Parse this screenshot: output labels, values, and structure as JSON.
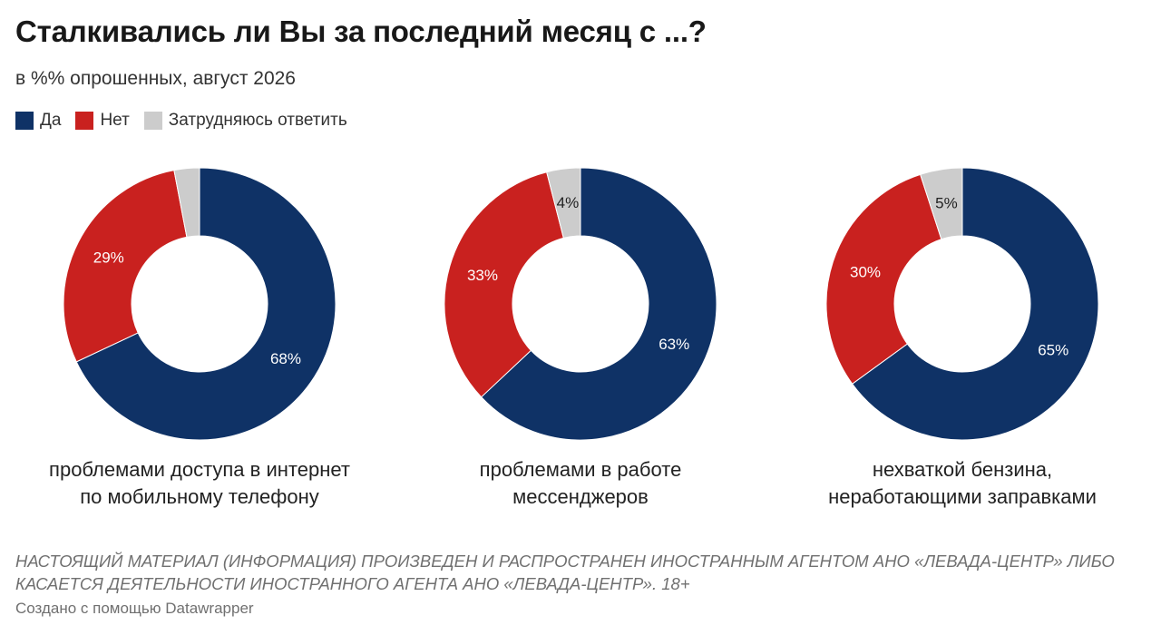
{
  "title": "Сталкивались ли Вы за последний месяц с ...?",
  "subtitle": "в %% опрошенных, август 2026",
  "legend": [
    {
      "label": "Да",
      "color": "#0f3266"
    },
    {
      "label": "Нет",
      "color": "#c9211f"
    },
    {
      "label": "Затрудняюсь ответить",
      "color": "#cccccc"
    }
  ],
  "chart_data": {
    "type": "pie",
    "subtype": "donut",
    "title": "Сталкивались ли Вы за последний месяц с ...?",
    "subtitle": "в %% опрошенных, август 2026",
    "unit": "%",
    "series_names": [
      "Да",
      "Нет",
      "Затрудняюсь ответить"
    ],
    "charts": [
      {
        "caption": [
          "проблемами доступа в интернет",
          "по мобильному телефону"
        ],
        "values": [
          68,
          29,
          3
        ],
        "labels": [
          "68%",
          "29%",
          ""
        ]
      },
      {
        "caption": [
          "проблемами в работе",
          "мессенджеров"
        ],
        "values": [
          63,
          33,
          4
        ],
        "labels": [
          "63%",
          "33%",
          "4%"
        ]
      },
      {
        "caption": [
          "нехваткой бензина,",
          "неработающими заправками"
        ],
        "values": [
          65,
          30,
          5
        ],
        "labels": [
          "65%",
          "30%",
          "5%"
        ]
      }
    ]
  },
  "footer": {
    "disclaimer": "НАСТОЯЩИЙ МАТЕРИАЛ (ИНФОРМАЦИЯ) ПРОИЗВЕДЕН И РАСПРОСТРАНЕН ИНОСТРАННЫМ АГЕНТОМ АНО «ЛЕВАДА-ЦЕНТР» ЛИБО КАСАЕТСЯ ДЕЯТЕЛЬНОСТИ ИНОСТРАННОГО АГЕНТА АНО «ЛЕВАДА-ЦЕНТР». 18+",
    "credit": "Создано с помощью Datawrapper"
  }
}
